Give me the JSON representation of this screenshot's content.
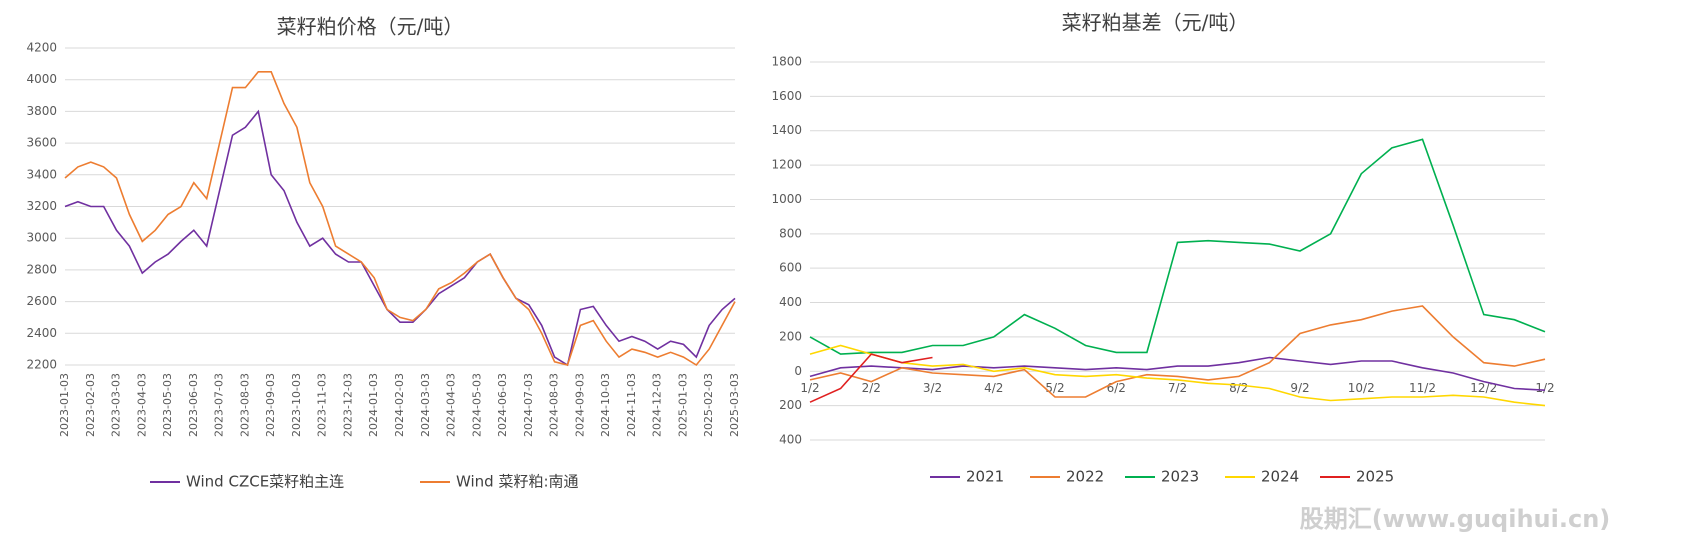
{
  "watermark": "股期汇(www.guqihui.cn)",
  "chart_data": [
    {
      "type": "line",
      "title": "菜籽粕价格（元/吨）",
      "categories": [
        "2023-01-03",
        null,
        "2023-02-03",
        null,
        "2023-03-03",
        null,
        "2023-04-03",
        null,
        "2023-05-03",
        null,
        "2023-06-03",
        null,
        "2023-07-03",
        null,
        "2023-08-03",
        null,
        "2023-09-03",
        null,
        "2023-10-03",
        null,
        "2023-11-03",
        null,
        "2023-12-03",
        null,
        "2024-01-03",
        null,
        "2024-02-03",
        null,
        "2024-03-03",
        null,
        "2024-04-03",
        null,
        "2024-05-03",
        null,
        "2024-06-03",
        null,
        "2024-07-03",
        null,
        "2024-08-03",
        null,
        "2024-09-03",
        null,
        "2024-10-03",
        null,
        "2024-11-03",
        null,
        "2024-12-03",
        null,
        "2025-01-03",
        null,
        "2025-02-03",
        null,
        "2025-03-03"
      ],
      "series": [
        {
          "name": "Wind CZCE菜籽粕主连",
          "color": "#7030a0",
          "values": [
            3200,
            3230,
            3200,
            3200,
            3050,
            2950,
            2780,
            2850,
            2900,
            2980,
            3050,
            2950,
            3300,
            3650,
            3700,
            3800,
            3400,
            3300,
            3100,
            2950,
            3000,
            2900,
            2850,
            2850,
            2700,
            2550,
            2470,
            2470,
            2550,
            2650,
            2700,
            2750,
            2850,
            2900,
            2750,
            2620,
            2580,
            2450,
            2250,
            2200,
            2550,
            2570,
            2450,
            2350,
            2380,
            2350,
            2300,
            2350,
            2330,
            2250,
            2450,
            2550,
            2620
          ]
        },
        {
          "name": "Wind 菜籽粕:南通",
          "color": "#ed7d31",
          "values": [
            3380,
            3450,
            3480,
            3450,
            3380,
            3150,
            2980,
            3050,
            3150,
            3200,
            3350,
            3250,
            3600,
            3950,
            3950,
            4050,
            4050,
            3850,
            3700,
            3350,
            3200,
            2950,
            2900,
            2850,
            2750,
            2550,
            2500,
            2480,
            2550,
            2680,
            2720,
            2780,
            2850,
            2900,
            2750,
            2620,
            2550,
            2400,
            2220,
            2200,
            2450,
            2480,
            2350,
            2250,
            2300,
            2280,
            2250,
            2280,
            2250,
            2200,
            2300,
            2450,
            2600
          ]
        }
      ],
      "ylim": [
        2200,
        4200
      ],
      "yticks": [
        2200,
        2400,
        2600,
        2800,
        3000,
        3200,
        3400,
        3600,
        3800,
        4000,
        4200
      ],
      "grid": true
    },
    {
      "type": "line",
      "title": "菜籽粕基差（元/吨）",
      "categories": [
        "1/2",
        null,
        "2/2",
        null,
        "3/2",
        null,
        "4/2",
        null,
        "5/2",
        null,
        "6/2",
        null,
        "7/2",
        null,
        "8/2",
        null,
        "9/2",
        null,
        "10/2",
        null,
        "11/2",
        null,
        "12/2",
        null,
        "1/2"
      ],
      "series": [
        {
          "name": "2021",
          "color": "#7030a0",
          "values": [
            -30,
            20,
            30,
            20,
            10,
            30,
            20,
            30,
            20,
            10,
            20,
            10,
            30,
            30,
            50,
            80,
            60,
            40,
            60,
            60,
            20,
            -10,
            -60,
            -100,
            -110
          ]
        },
        {
          "name": "2022",
          "color": "#ed7d31",
          "values": [
            -50,
            -10,
            -60,
            20,
            -10,
            -20,
            -30,
            10,
            -150,
            -150,
            -60,
            -20,
            -30,
            -50,
            -30,
            50,
            220,
            270,
            300,
            350,
            380,
            200,
            50,
            30,
            70
          ]
        },
        {
          "name": "2023",
          "color": "#00b050",
          "values": [
            200,
            100,
            110,
            110,
            150,
            150,
            200,
            330,
            250,
            150,
            110,
            110,
            750,
            760,
            750,
            740,
            700,
            800,
            1150,
            1300,
            1350,
            850,
            330,
            300,
            230
          ]
        },
        {
          "name": "2024",
          "color": "#ffd700",
          "values": [
            100,
            150,
            100,
            50,
            30,
            40,
            0,
            20,
            -20,
            -30,
            -20,
            -40,
            -50,
            -70,
            -80,
            -100,
            -150,
            -170,
            -160,
            -150,
            -150,
            -140,
            -150,
            -180,
            -200
          ]
        },
        {
          "name": "2025",
          "color": "#e02020",
          "values": [
            -180,
            -100,
            100,
            50,
            80,
            null,
            null,
            null,
            null,
            null,
            null,
            null,
            null,
            null,
            null,
            null,
            null,
            null,
            null,
            null,
            null,
            null,
            null,
            null,
            null
          ]
        }
      ],
      "ylim": [
        -400,
        1800
      ],
      "yticks": [
        {
          "value": -400,
          "label": "400"
        },
        {
          "value": -200,
          "label": "200"
        },
        0,
        200,
        400,
        600,
        800,
        1000,
        1200,
        1400,
        1600,
        1800
      ],
      "grid": true
    }
  ]
}
